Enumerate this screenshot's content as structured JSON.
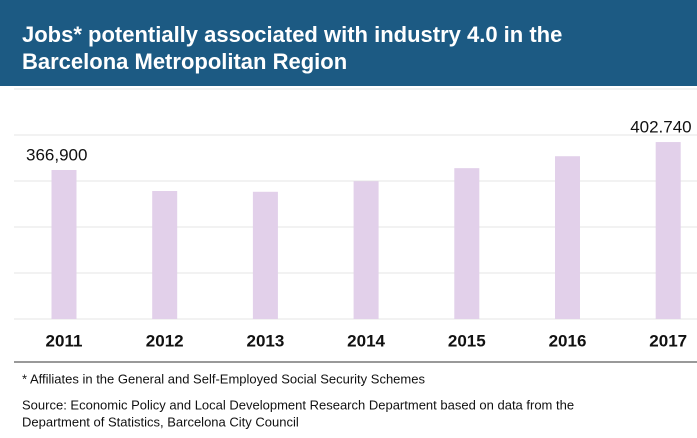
{
  "chart_data": {
    "type": "bar",
    "title_lines": [
      "Jobs* potentially associated with industry 4.0 in the",
      "Barcelona Metropolitan Region"
    ],
    "categories": [
      "2011",
      "2012",
      "2013",
      "2014",
      "2015",
      "2016",
      "2017"
    ],
    "values": [
      366900,
      340000,
      339000,
      352600,
      369300,
      384600,
      402740
    ],
    "value_labels": [
      "366,900",
      null,
      null,
      null,
      null,
      null,
      "402.740"
    ],
    "color": "#e2d0ea",
    "ylim": [
      176000,
      472000
    ],
    "footnote": "* Affiliates in the General and Self-Employed Social Security Schemes",
    "source_lines": [
      "Source: Economic Policy and Local Development Research Department based on data from the",
      "Department of Statistics, Barcelona City Council"
    ]
  }
}
